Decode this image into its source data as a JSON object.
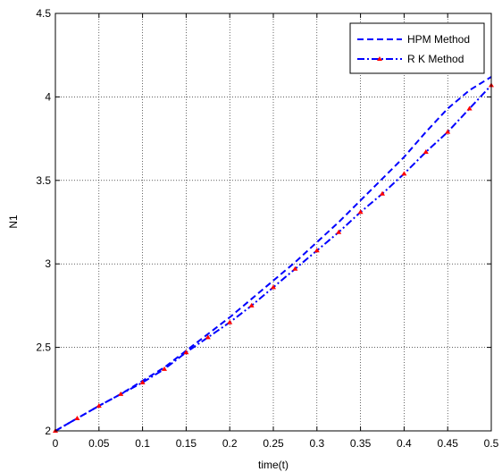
{
  "chart_data": {
    "type": "line",
    "title": "",
    "xlabel": "time(t)",
    "ylabel": "N1",
    "xlim": [
      0,
      0.5
    ],
    "ylim": [
      2,
      4.5
    ],
    "grid": true,
    "legend_position": "top-right",
    "x_ticks": [
      "0",
      "0.05",
      "0.1",
      "0.15",
      "0.2",
      "0.25",
      "0.3",
      "0.35",
      "0.4",
      "0.45",
      "0.5"
    ],
    "y_ticks": [
      "2",
      "2.5",
      "3",
      "3.5",
      "4",
      "4.5"
    ],
    "x": [
      0,
      0.025,
      0.05,
      0.075,
      0.1,
      0.125,
      0.15,
      0.175,
      0.2,
      0.225,
      0.25,
      0.275,
      0.3,
      0.325,
      0.35,
      0.375,
      0.4,
      0.425,
      0.45,
      0.475,
      0.5
    ],
    "series": [
      {
        "name": "HPM Method",
        "style": "dashed",
        "color": "#0000ff",
        "values": [
          2.0,
          2.075,
          2.15,
          2.22,
          2.3,
          2.38,
          2.48,
          2.58,
          2.68,
          2.79,
          2.9,
          3.01,
          3.13,
          3.25,
          3.38,
          3.51,
          3.64,
          3.79,
          3.93,
          4.04,
          4.12
        ]
      },
      {
        "name": "R K Method",
        "style": "dash-dot",
        "color": "#0000ff",
        "marker_color": "#ff0000",
        "values": [
          2.0,
          2.075,
          2.15,
          2.22,
          2.29,
          2.37,
          2.47,
          2.56,
          2.65,
          2.75,
          2.86,
          2.97,
          3.08,
          3.19,
          3.31,
          3.42,
          3.54,
          3.67,
          3.79,
          3.93,
          4.07
        ]
      }
    ]
  }
}
